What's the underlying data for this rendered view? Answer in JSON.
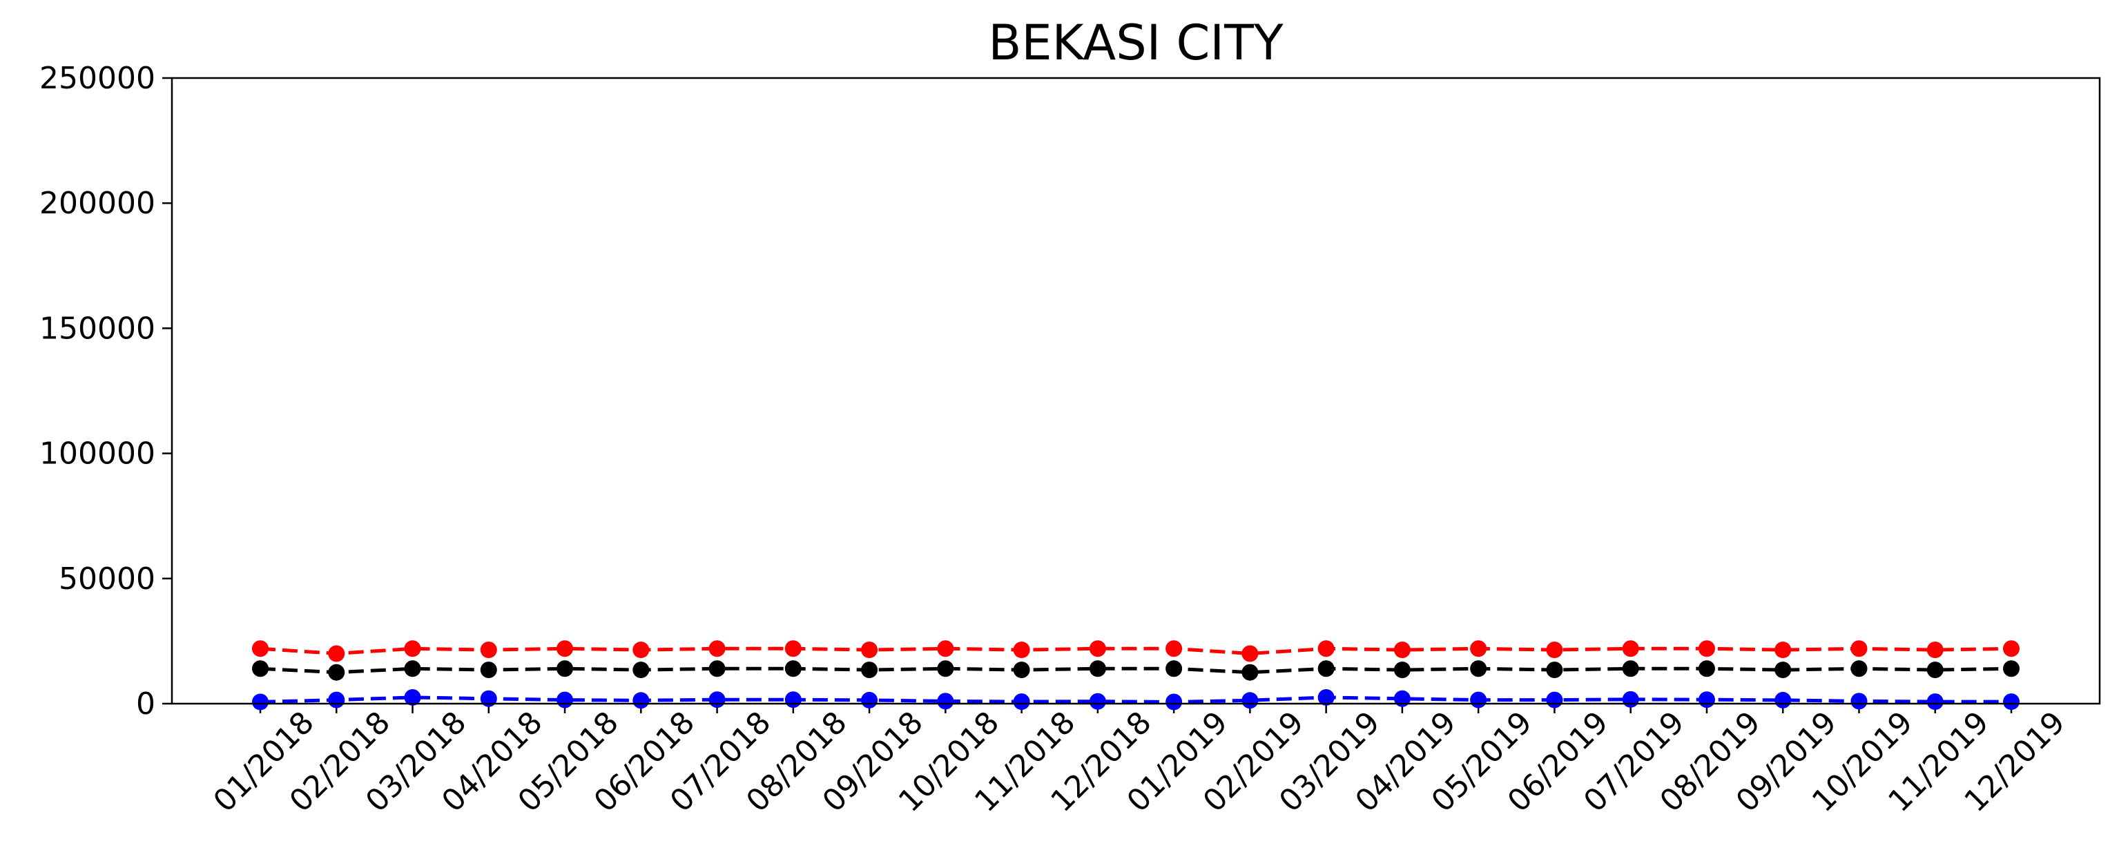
{
  "chart_data": {
    "type": "line",
    "title": "BEKASI CITY",
    "xlabel": "",
    "ylabel": "",
    "ylim": [
      0,
      250000
    ],
    "yticks": [
      "0",
      "50000",
      "100000",
      "150000",
      "200000",
      "250000"
    ],
    "categories": [
      "01/2018",
      "02/2018",
      "03/2018",
      "04/2018",
      "05/2018",
      "06/2018",
      "07/2018",
      "08/2018",
      "09/2018",
      "10/2018",
      "11/2018",
      "12/2018",
      "01/2019",
      "02/2019",
      "03/2019",
      "04/2019",
      "05/2019",
      "06/2019",
      "07/2019",
      "08/2019",
      "09/2019",
      "10/2019",
      "11/2019",
      "12/2019"
    ],
    "grid": false,
    "legend": "none",
    "series": [
      {
        "color": "#ff0000",
        "line_style": "dashed",
        "marker": "circle",
        "values": [
          22000,
          20000,
          22000,
          21500,
          22000,
          21500,
          22000,
          22000,
          21500,
          22000,
          21500,
          22000,
          22000,
          20000,
          22000,
          21500,
          22000,
          21500,
          22000,
          22000,
          21500,
          22000,
          21500,
          22000
        ]
      },
      {
        "color": "#000000",
        "line_style": "dashed",
        "marker": "circle",
        "values": [
          14000,
          12500,
          14000,
          13500,
          14000,
          13500,
          14000,
          14000,
          13500,
          14000,
          13500,
          14000,
          14000,
          12500,
          14000,
          13500,
          14000,
          13500,
          14000,
          14000,
          13500,
          14000,
          13500,
          14000
        ]
      },
      {
        "color": "#0000ff",
        "line_style": "dashed",
        "marker": "circle",
        "values": [
          700,
          1500,
          2500,
          2000,
          1500,
          1300,
          1600,
          1600,
          1400,
          1000,
          800,
          900,
          700,
          1300,
          2500,
          2000,
          1500,
          1500,
          1700,
          1600,
          1400,
          1000,
          800,
          800
        ]
      }
    ]
  }
}
